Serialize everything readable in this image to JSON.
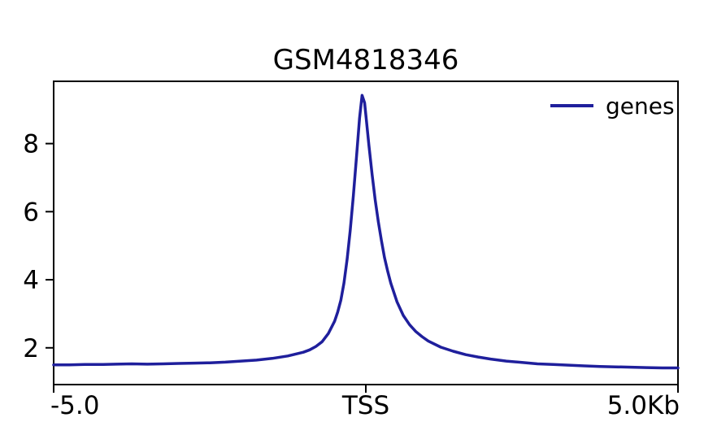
{
  "title": "GSM4818346",
  "legend": {
    "entries": [
      {
        "label": "genes",
        "color": "#1f1f9c"
      }
    ]
  },
  "chart_data": {
    "type": "line",
    "title": "GSM4818346",
    "xlabel": "",
    "ylabel": "",
    "x_unit": "Kb",
    "reference_point_label": "TSS",
    "xlim": [
      -5,
      5
    ],
    "ylim": [
      0.92,
      9.83
    ],
    "grid": false,
    "legend_position": "upper-right",
    "legend_frame": false,
    "xticks": [
      {
        "pos": -5,
        "label": "-5.0",
        "align": "start"
      },
      {
        "pos": 0,
        "label": "TSS",
        "align": "middle"
      },
      {
        "pos": 5,
        "label": "5.0Kb",
        "align": "end"
      }
    ],
    "yticks": [
      {
        "pos": 2,
        "label": "2"
      },
      {
        "pos": 4,
        "label": "4"
      },
      {
        "pos": 6,
        "label": "6"
      },
      {
        "pos": 8,
        "label": "8"
      }
    ],
    "series": [
      {
        "name": "genes",
        "color": "#1f1f9c",
        "line_width": 3.5,
        "points": [
          [
            -5.0,
            1.5
          ],
          [
            -4.75,
            1.5
          ],
          [
            -4.5,
            1.51
          ],
          [
            -4.25,
            1.51
          ],
          [
            -4.0,
            1.52
          ],
          [
            -3.75,
            1.53
          ],
          [
            -3.5,
            1.52
          ],
          [
            -3.25,
            1.53
          ],
          [
            -3.0,
            1.54
          ],
          [
            -2.75,
            1.55
          ],
          [
            -2.5,
            1.56
          ],
          [
            -2.25,
            1.58
          ],
          [
            -2.0,
            1.61
          ],
          [
            -1.75,
            1.64
          ],
          [
            -1.5,
            1.69
          ],
          [
            -1.25,
            1.76
          ],
          [
            -1.0,
            1.87
          ],
          [
            -0.9,
            1.94
          ],
          [
            -0.8,
            2.04
          ],
          [
            -0.7,
            2.18
          ],
          [
            -0.6,
            2.42
          ],
          [
            -0.5,
            2.78
          ],
          [
            -0.45,
            3.05
          ],
          [
            -0.4,
            3.4
          ],
          [
            -0.35,
            3.9
          ],
          [
            -0.3,
            4.6
          ],
          [
            -0.25,
            5.45
          ],
          [
            -0.2,
            6.45
          ],
          [
            -0.15,
            7.6
          ],
          [
            -0.1,
            8.75
          ],
          [
            -0.06,
            9.42
          ],
          [
            -0.02,
            9.2
          ],
          [
            0.0,
            8.85
          ],
          [
            0.05,
            7.95
          ],
          [
            0.1,
            7.1
          ],
          [
            0.15,
            6.35
          ],
          [
            0.2,
            5.7
          ],
          [
            0.25,
            5.15
          ],
          [
            0.3,
            4.65
          ],
          [
            0.35,
            4.25
          ],
          [
            0.4,
            3.9
          ],
          [
            0.5,
            3.35
          ],
          [
            0.6,
            2.95
          ],
          [
            0.7,
            2.68
          ],
          [
            0.8,
            2.48
          ],
          [
            0.9,
            2.33
          ],
          [
            1.0,
            2.2
          ],
          [
            1.2,
            2.02
          ],
          [
            1.4,
            1.9
          ],
          [
            1.6,
            1.8
          ],
          [
            1.8,
            1.73
          ],
          [
            2.0,
            1.67
          ],
          [
            2.25,
            1.61
          ],
          [
            2.5,
            1.57
          ],
          [
            2.75,
            1.53
          ],
          [
            3.0,
            1.51
          ],
          [
            3.25,
            1.49
          ],
          [
            3.5,
            1.47
          ],
          [
            3.75,
            1.45
          ],
          [
            4.0,
            1.44
          ],
          [
            4.25,
            1.43
          ],
          [
            4.5,
            1.42
          ],
          [
            4.75,
            1.41
          ],
          [
            5.0,
            1.41
          ]
        ]
      }
    ]
  }
}
